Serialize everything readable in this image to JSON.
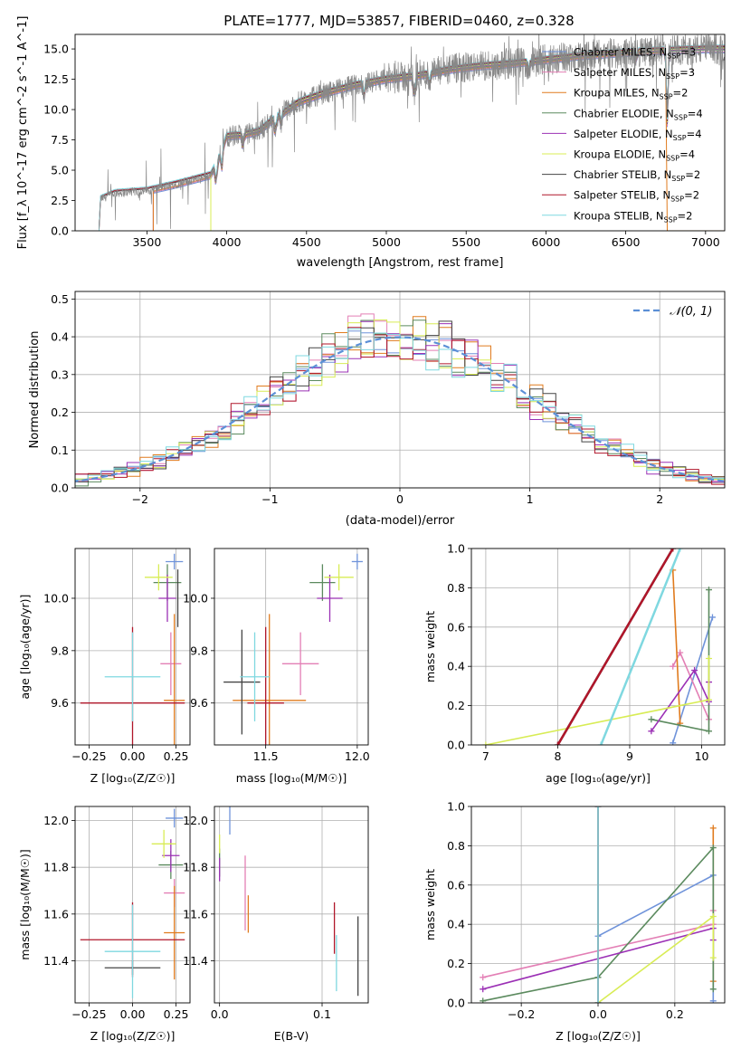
{
  "figure_title": "PLATE=1777, MJD=53857, FIBERID=0460, z=0.328",
  "colors": {
    "Chabrier MILES": "#6f93da",
    "Salpeter MILES": "#e37fb5",
    "Kroupa MILES": "#e07b1e",
    "Chabrier ELODIE": "#5b8a5e",
    "Salpeter ELODIE": "#9b30b5",
    "Kroupa ELODIE": "#d8ec55",
    "Chabrier STELIB": "#444444",
    "Salpeter STELIB": "#b0162a",
    "Kroupa STELIB": "#7fd8e0",
    "normal": "#5b8fd6"
  },
  "chart_data": [
    {
      "id": "spectrum",
      "type": "line",
      "title": "PLATE=1777, MJD=53857, FIBERID=0460, z=0.328",
      "xlabel": "wavelength [Angstrom, rest frame]",
      "ylabel": "Flux [f_λ 10^-17 erg cm^-2 s^-1 A^-1]",
      "xlim": [
        3050,
        7120
      ],
      "ylim": [
        0,
        16.2
      ],
      "xticks": [
        "3500",
        "4000",
        "4500",
        "5000",
        "5500",
        "6000",
        "6500",
        "7000"
      ],
      "yticks": [
        "0.0",
        "2.5",
        "5.0",
        "7.5",
        "10.0",
        "12.5",
        "15.0"
      ],
      "legend_position": "right",
      "legend": [
        {
          "model": "Chabrier MILES",
          "label_main": "Chabrier MILES, N",
          "label_sub": "SSP",
          "label_tail": "=3"
        },
        {
          "model": "Salpeter MILES",
          "label_main": "Salpeter MILES, N",
          "label_sub": "SSP",
          "label_tail": "=3"
        },
        {
          "model": "Kroupa MILES",
          "label_main": "Kroupa MILES, N",
          "label_sub": "SSP",
          "label_tail": "=2"
        },
        {
          "model": "Chabrier ELODIE",
          "label_main": "Chabrier ELODIE, N",
          "label_sub": "SSP",
          "label_tail": "=4"
        },
        {
          "model": "Salpeter ELODIE",
          "label_main": "Salpeter ELODIE, N",
          "label_sub": "SSP",
          "label_tail": "=4"
        },
        {
          "model": "Kroupa ELODIE",
          "label_main": "Kroupa ELODIE, N",
          "label_sub": "SSP",
          "label_tail": "=4"
        },
        {
          "model": "Chabrier STELIB",
          "label_main": "Chabrier STELIB, N",
          "label_sub": "SSP",
          "label_tail": "=2"
        },
        {
          "model": "Salpeter STELIB",
          "label_main": "Salpeter STELIB, N",
          "label_sub": "SSP",
          "label_tail": "=2"
        },
        {
          "model": "Kroupa STELIB",
          "label_main": "Kroupa STELIB, N",
          "label_sub": "SSP",
          "label_tail": "=2"
        }
      ],
      "continuum_points": [
        [
          3200,
          0
        ],
        [
          3210,
          2.6
        ],
        [
          3300,
          3.1
        ],
        [
          3500,
          3.3
        ],
        [
          3700,
          3.9
        ],
        [
          3900,
          4.6
        ],
        [
          3960,
          6.3
        ],
        [
          4000,
          7.8
        ],
        [
          4100,
          7.9
        ],
        [
          4200,
          8.2
        ],
        [
          4300,
          9.3
        ],
        [
          4350,
          9.7
        ],
        [
          4450,
          10.6
        ],
        [
          4600,
          11.3
        ],
        [
          4800,
          12.0
        ],
        [
          5000,
          12.5
        ],
        [
          5200,
          12.8
        ],
        [
          5400,
          13.3
        ],
        [
          5600,
          13.6
        ],
        [
          5800,
          13.8
        ],
        [
          6000,
          14.1
        ],
        [
          6200,
          14.4
        ],
        [
          6400,
          14.6
        ],
        [
          6600,
          14.8
        ],
        [
          6800,
          14.9
        ],
        [
          7000,
          15.0
        ]
      ],
      "model_starts": [
        {
          "model": "Chabrier MILES",
          "start": 3540
        },
        {
          "model": "Salpeter MILES",
          "start": 3540
        },
        {
          "model": "Kroupa MILES",
          "start": 3540
        },
        {
          "model": "Chabrier ELODIE",
          "start": 3900
        },
        {
          "model": "Salpeter ELODIE",
          "start": 3900
        },
        {
          "model": "Kroupa ELODIE",
          "start": 3900
        },
        {
          "model": "Chabrier STELIB",
          "start": 3200
        },
        {
          "model": "Salpeter STELIB",
          "start": 3200
        },
        {
          "model": "Kroupa STELIB",
          "start": 3200
        }
      ],
      "absorption_lines": [
        3934,
        3969,
        4102,
        4304,
        4340,
        4861,
        5175,
        5270,
        5892,
        6563,
        6760
      ],
      "line_depths": [
        3.0,
        2.5,
        1.5,
        2.5,
        1.5,
        1.8,
        3.5,
        1.5,
        1.5,
        1.5,
        10
      ],
      "observed_label": "",
      "upper_cutoff_model": "Kroupa MILES",
      "upper_cutoff_at": 6760
    },
    {
      "id": "residuals",
      "type": "histogram",
      "xlabel": "(data-model)/error",
      "ylabel": "Normed distribution",
      "xlim": [
        -2.5,
        2.5
      ],
      "ylim": [
        0,
        0.52
      ],
      "xticks": [
        "−2",
        "−1",
        "0",
        "1",
        "2"
      ],
      "yticks": [
        "0.0",
        "0.1",
        "0.2",
        "0.3",
        "0.4",
        "0.5"
      ],
      "bin_width": 0.1,
      "reference_curve": {
        "label": "𝒩(0, 1)",
        "mean": 0,
        "sigma": 1
      },
      "legend_position": "top-right",
      "grid": true
    },
    {
      "id": "Z_vs_age",
      "type": "errorbar",
      "xlabel": "Z [log₁₀(Z/Z☉)]",
      "ylabel": "age [log₁₀(age/yr)]",
      "xlim": [
        -0.33,
        0.33
      ],
      "ylim": [
        9.44,
        10.19
      ],
      "xticks": [
        "−0.25",
        "0.00",
        "0.25"
      ],
      "yticks": [
        "9.6",
        "9.8",
        "10.0"
      ],
      "points": [
        {
          "model": "Chabrier MILES",
          "x": 0.24,
          "xerr": 0.05,
          "y": 10.14,
          "yerr": 0.03
        },
        {
          "model": "Salpeter MILES",
          "x": 0.22,
          "xerr": 0.06,
          "y": 9.75,
          "yerr": 0.12
        },
        {
          "model": "Kroupa MILES",
          "x": 0.24,
          "xerr": 0.06,
          "y": 9.61,
          "yerr": 0.33
        },
        {
          "model": "Chabrier ELODIE",
          "x": 0.2,
          "xerr": 0.08,
          "y": 10.06,
          "yerr": 0.07
        },
        {
          "model": "Salpeter ELODIE",
          "x": 0.2,
          "xerr": 0.05,
          "y": 10.0,
          "yerr": 0.09
        },
        {
          "model": "Kroupa ELODIE",
          "x": 0.15,
          "xerr": 0.08,
          "y": 10.08,
          "yerr": 0.05
        },
        {
          "model": "Chabrier STELIB",
          "x": 0.26,
          "xerr": 0.0,
          "y": 10.0,
          "yerr": 0.11
        },
        {
          "model": "Salpeter STELIB",
          "x": 0.0,
          "xerr": 0.3,
          "y": 9.6,
          "yerr": 0.29
        },
        {
          "model": "Kroupa STELIB",
          "x": 0.0,
          "xerr": 0.16,
          "y": 9.7,
          "yerr": 0.17
        }
      ],
      "grid": true
    },
    {
      "id": "mass_vs_age",
      "type": "errorbar",
      "xlabel": "mass [log₁₀(M/M☉)]",
      "ylabel": "",
      "xlim": [
        11.22,
        12.06
      ],
      "ylim": [
        9.44,
        10.19
      ],
      "xticks": [
        "11.5",
        "12.0"
      ],
      "yticks": [
        "9.6",
        "9.8",
        "10.0"
      ],
      "points": [
        {
          "model": "Chabrier MILES",
          "x": 12.0,
          "xerr": 0.03,
          "y": 10.14,
          "yerr": 0.03
        },
        {
          "model": "Salpeter MILES",
          "x": 11.69,
          "xerr": 0.1,
          "y": 9.75,
          "yerr": 0.12
        },
        {
          "model": "Kroupa MILES",
          "x": 11.52,
          "xerr": 0.2,
          "y": 9.61,
          "yerr": 0.33
        },
        {
          "model": "Chabrier ELODIE",
          "x": 11.81,
          "xerr": 0.07,
          "y": 10.06,
          "yerr": 0.07
        },
        {
          "model": "Salpeter ELODIE",
          "x": 11.85,
          "xerr": 0.07,
          "y": 10.0,
          "yerr": 0.09
        },
        {
          "model": "Kroupa ELODIE",
          "x": 11.9,
          "xerr": 0.08,
          "y": 10.08,
          "yerr": 0.05
        },
        {
          "model": "Chabrier STELIB",
          "x": 11.37,
          "xerr": 0.1,
          "y": 9.68,
          "yerr": 0.2
        },
        {
          "model": "Salpeter STELIB",
          "x": 11.5,
          "xerr": 0.1,
          "y": 9.6,
          "yerr": 0.29
        },
        {
          "model": "Kroupa STELIB",
          "x": 11.44,
          "xerr": 0.08,
          "y": 9.7,
          "yerr": 0.17
        }
      ],
      "grid": true
    },
    {
      "id": "age_vs_weight",
      "type": "line",
      "xlabel": "age [log₁₀(age/yr)]",
      "ylabel": "mass weight",
      "xlim": [
        6.8,
        10.32
      ],
      "ylim": [
        0,
        1
      ],
      "xticks": [
        "7",
        "8",
        "9",
        "10"
      ],
      "yticks": [
        "0.0",
        "0.2",
        "0.4",
        "0.6",
        "0.8",
        "1.0"
      ],
      "series": [
        {
          "model": "Chabrier MILES",
          "x": [
            9.6,
            10.15
          ],
          "y": [
            0.01,
            0.65
          ]
        },
        {
          "model": "Salpeter MILES",
          "x": [
            9.6,
            9.7,
            10.1
          ],
          "y": [
            0.4,
            0.47,
            0.13
          ]
        },
        {
          "model": "Kroupa MILES",
          "x": [
            9.6,
            9.7
          ],
          "y": [
            0.89,
            0.11
          ]
        },
        {
          "model": "Chabrier ELODIE",
          "x": [
            9.3,
            10.1,
            10.1
          ],
          "y": [
            0.13,
            0.07,
            0.79
          ]
        },
        {
          "model": "Salpeter ELODIE",
          "x": [
            9.3,
            9.9,
            10.1,
            10.1
          ],
          "y": [
            0.07,
            0.38,
            0.22,
            0.32
          ]
        },
        {
          "model": "Kroupa ELODIE",
          "x": [
            7.0,
            10.1,
            10.1
          ],
          "y": [
            0.0,
            0.23,
            0.44
          ]
        },
        {
          "model": "Chabrier STELIB",
          "x": [
            8.0,
            9.6
          ],
          "y": [
            0.0,
            1.0
          ]
        },
        {
          "model": "Salpeter STELIB",
          "x": [
            8.0,
            9.6
          ],
          "y": [
            0.0,
            1.0
          ]
        },
        {
          "model": "Kroupa STELIB",
          "x": [
            8.6,
            9.7
          ],
          "y": [
            0.0,
            1.0
          ]
        }
      ],
      "grid": true
    },
    {
      "id": "Z_vs_mass",
      "type": "errorbar",
      "xlabel": "Z [log₁₀(Z/Z☉)]",
      "ylabel": "mass [log₁₀(M/M☉)]",
      "xlim": [
        -0.33,
        0.33
      ],
      "ylim": [
        11.22,
        12.06
      ],
      "xticks": [
        "−0.25",
        "0.00",
        "0.25"
      ],
      "yticks": [
        "11.4",
        "11.6",
        "11.8",
        "12.0"
      ],
      "points": [
        {
          "model": "Chabrier MILES",
          "x": 0.24,
          "xerr": 0.05,
          "y": 12.01,
          "yerr": 0.04
        },
        {
          "model": "Salpeter MILES",
          "x": 0.24,
          "xerr": 0.06,
          "y": 11.69,
          "yerr": 0.06
        },
        {
          "model": "Kroupa MILES",
          "x": 0.24,
          "xerr": 0.06,
          "y": 11.52,
          "yerr": 0.2
        },
        {
          "model": "Chabrier ELODIE",
          "x": 0.22,
          "xerr": 0.07,
          "y": 11.81,
          "yerr": 0.06
        },
        {
          "model": "Salpeter ELODIE",
          "x": 0.22,
          "xerr": 0.05,
          "y": 11.85,
          "yerr": 0.07
        },
        {
          "model": "Kroupa ELODIE",
          "x": 0.18,
          "xerr": 0.07,
          "y": 11.9,
          "yerr": 0.06
        },
        {
          "model": "Chabrier STELIB",
          "x": 0.0,
          "xerr": 0.16,
          "y": 11.37,
          "yerr": 0.03
        },
        {
          "model": "Salpeter STELIB",
          "x": 0.0,
          "xerr": 0.3,
          "y": 11.49,
          "yerr": 0.16
        },
        {
          "model": "Kroupa STELIB",
          "x": 0.0,
          "xerr": 0.16,
          "y": 11.44,
          "yerr": 0.2
        }
      ],
      "grid": true
    },
    {
      "id": "EBV_vs_mass",
      "type": "errorbar",
      "xlabel": "E(B-V)",
      "ylabel": "",
      "xlim": [
        -0.005,
        0.145
      ],
      "ylim": [
        11.22,
        12.06
      ],
      "xticks": [
        "0.0",
        "0.1"
      ],
      "yticks": [
        "11.4",
        "11.6",
        "11.8",
        "12.0"
      ],
      "points": [
        {
          "model": "Chabrier MILES",
          "x": 0.01,
          "xerr": 0.0,
          "y": 12.0,
          "yerr": 0.06
        },
        {
          "model": "Salpeter MILES",
          "x": 0.025,
          "xerr": 0.0,
          "y": 11.69,
          "yerr": 0.16
        },
        {
          "model": "Kroupa MILES",
          "x": 0.028,
          "xerr": 0.0,
          "y": 11.6,
          "yerr": 0.08
        },
        {
          "model": "Chabrier ELODIE",
          "x": 0.0,
          "xerr": 0.0,
          "y": 11.82,
          "yerr": 0.06
        },
        {
          "model": "Salpeter ELODIE",
          "x": 0.0,
          "xerr": 0.0,
          "y": 11.79,
          "yerr": 0.05
        },
        {
          "model": "Kroupa ELODIE",
          "x": 0.0,
          "xerr": 0.0,
          "y": 11.9,
          "yerr": 0.04
        },
        {
          "model": "Chabrier STELIB",
          "x": 0.135,
          "xerr": 0.0,
          "y": 11.42,
          "yerr": 0.17
        },
        {
          "model": "Salpeter STELIB",
          "x": 0.112,
          "xerr": 0.0,
          "y": 11.54,
          "yerr": 0.11
        },
        {
          "model": "Kroupa STELIB",
          "x": 0.114,
          "xerr": 0.0,
          "y": 11.39,
          "yerr": 0.12
        }
      ],
      "grid": true
    },
    {
      "id": "Z_vs_weight",
      "type": "line",
      "xlabel": "Z [log₁₀(Z/Z☉)]",
      "ylabel": "mass weight",
      "xlim": [
        -0.33,
        0.33
      ],
      "ylim": [
        0,
        1
      ],
      "xticks": [
        "−0.2",
        "0.0",
        "0.2"
      ],
      "yticks": [
        "0.0",
        "0.2",
        "0.4",
        "0.6",
        "0.8",
        "1.0"
      ],
      "series": [
        {
          "model": "Chabrier MILES",
          "x": [
            0.0,
            0.3,
            0.3
          ],
          "y": [
            0.34,
            0.65,
            0.01
          ]
        },
        {
          "model": "Salpeter MILES",
          "x": [
            -0.3,
            0.3,
            0.3
          ],
          "y": [
            0.13,
            0.4,
            0.47
          ]
        },
        {
          "model": "Kroupa MILES",
          "x": [
            0.3,
            0.3
          ],
          "y": [
            0.11,
            0.89
          ]
        },
        {
          "model": "Chabrier ELODIE",
          "x": [
            -0.3,
            0.0,
            0.3,
            0.3
          ],
          "y": [
            0.01,
            0.13,
            0.79,
            0.07
          ]
        },
        {
          "model": "Salpeter ELODIE",
          "x": [
            -0.3,
            0.3,
            0.3
          ],
          "y": [
            0.07,
            0.38,
            0.32
          ]
        },
        {
          "model": "Kroupa ELODIE",
          "x": [
            0.0,
            0.3,
            0.3
          ],
          "y": [
            0.0,
            0.44,
            0.23
          ]
        },
        {
          "model": "Chabrier STELIB",
          "x": [
            0.0,
            0.0
          ],
          "y": [
            0.0,
            1.0
          ]
        },
        {
          "model": "Salpeter STELIB",
          "x": [
            0.0,
            0.0
          ],
          "y": [
            0.0,
            1.0
          ]
        },
        {
          "model": "Kroupa STELIB",
          "x": [
            0.0,
            0.0
          ],
          "y": [
            0.0,
            1.0
          ]
        }
      ],
      "grid": true
    }
  ]
}
